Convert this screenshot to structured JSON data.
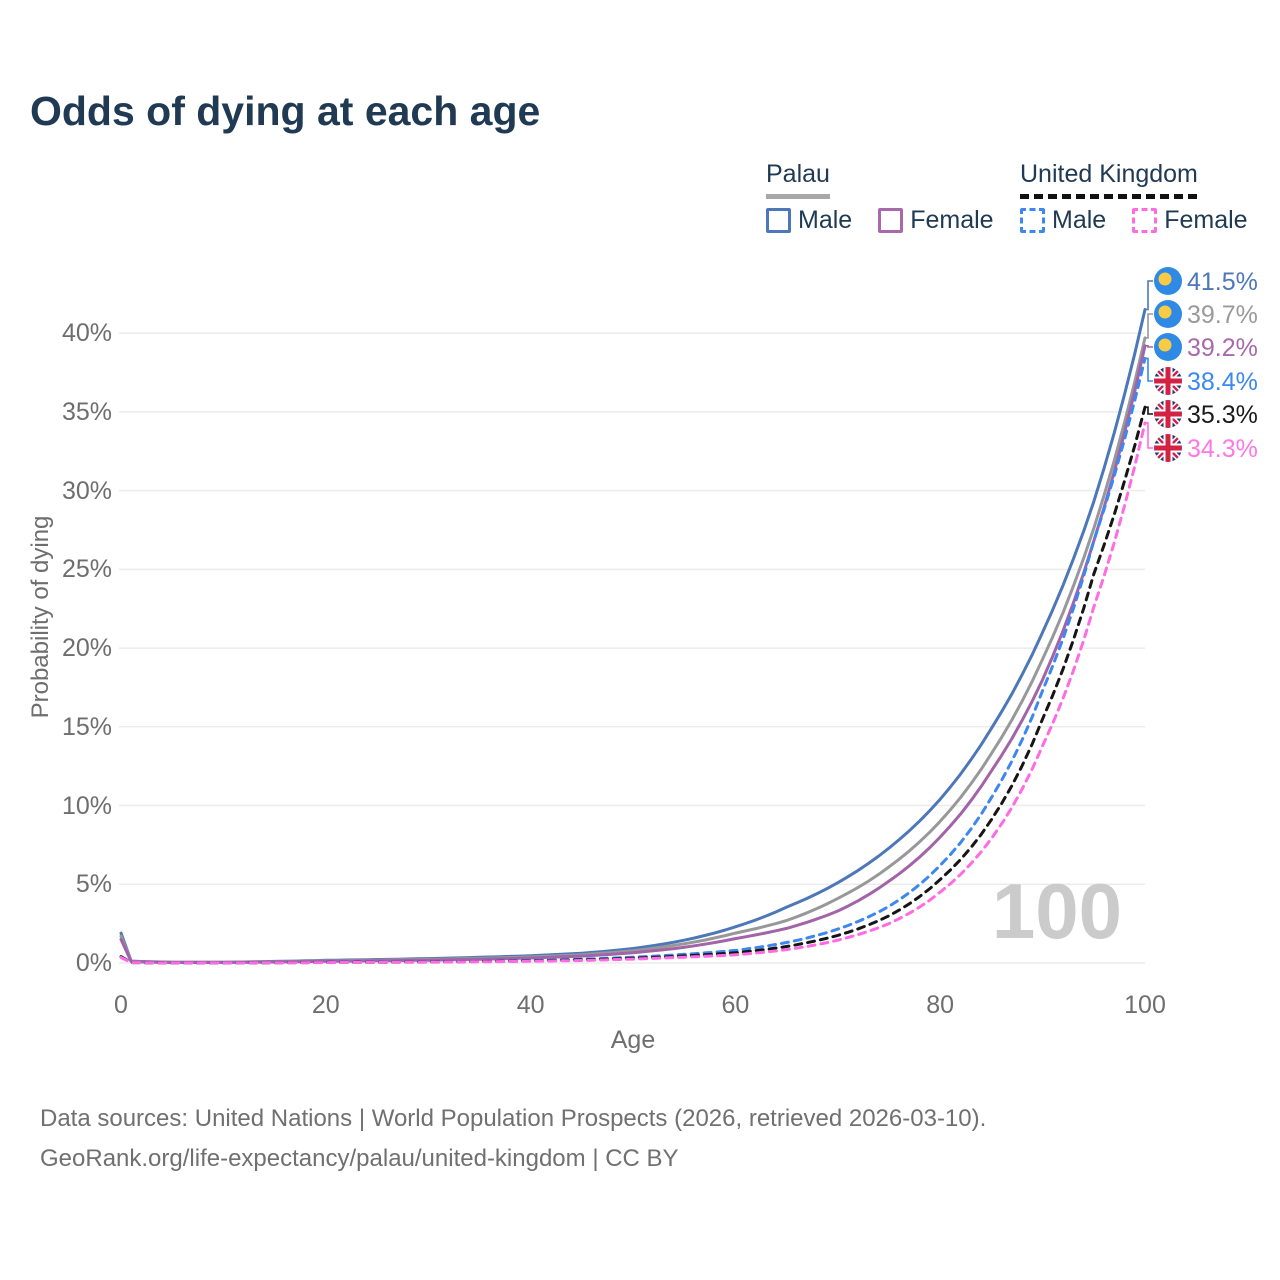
{
  "title": "Odds of dying at each age",
  "colors": {
    "title_text": "#203a54",
    "axis_text": "#6e6e6e",
    "gridline": "#ececec",
    "watermark": "#cbcbcb",
    "palau_flag_blue": "#2e8ae4",
    "palau_flag_yellow": "#f8ca45",
    "uk_flag_navy": "#20377d",
    "uk_flag_red": "#d32345"
  },
  "legend": {
    "groups": [
      {
        "name": "Palau",
        "underline_style": "solid",
        "underline_color": "#a8a8a8",
        "items": [
          {
            "label": "Male",
            "color": "#4c77b8",
            "dashed": false
          },
          {
            "label": "Female",
            "color": "#a869ab",
            "dashed": false
          }
        ]
      },
      {
        "name": "United Kingdom",
        "underline_style": "dashed",
        "underline_color": "#111111",
        "items": [
          {
            "label": "Male",
            "color": "#3c87f0",
            "dashed": true
          },
          {
            "label": "Female",
            "color": "#ff6be3",
            "dashed": true
          }
        ]
      }
    ]
  },
  "watermark": "100",
  "chart_data": {
    "type": "line",
    "title": "Odds of dying at each age",
    "xlabel": "Age",
    "ylabel": "Probability of dying",
    "xlim": [
      0,
      100
    ],
    "ylim": [
      0,
      44
    ],
    "grid": "horizontal",
    "x_ticks": [
      {
        "label": "0",
        "value": 0
      },
      {
        "label": "20",
        "value": 20
      },
      {
        "label": "40",
        "value": 40
      },
      {
        "label": "60",
        "value": 60
      },
      {
        "label": "80",
        "value": 80
      },
      {
        "label": "100",
        "value": 100
      }
    ],
    "y_ticks": [
      {
        "label": "0%",
        "value": 0
      },
      {
        "label": "5%",
        "value": 5
      },
      {
        "label": "10%",
        "value": 10
      },
      {
        "label": "15%",
        "value": 15
      },
      {
        "label": "20%",
        "value": 20
      },
      {
        "label": "25%",
        "value": 25
      },
      {
        "label": "30%",
        "value": 30
      },
      {
        "label": "35%",
        "value": 35
      },
      {
        "label": "40%",
        "value": 40
      }
    ],
    "ages": [
      0,
      1,
      5,
      10,
      15,
      20,
      25,
      30,
      35,
      40,
      45,
      50,
      55,
      60,
      65,
      70,
      75,
      80,
      85,
      90,
      95,
      100
    ],
    "unit": "percent probability of dying at each age",
    "series": [
      {
        "name": "Palau Male",
        "country": "Palau",
        "sex": "Male",
        "color": "#4c77b8",
        "dashed": false,
        "flag": "palau",
        "end_label": "41.5%",
        "end_label_color": "#4c77b8",
        "values": [
          1.9,
          0.12,
          0.05,
          0.05,
          0.1,
          0.17,
          0.22,
          0.28,
          0.36,
          0.46,
          0.62,
          0.92,
          1.45,
          2.3,
          3.55,
          5.1,
          7.3,
          10.4,
          14.9,
          21.0,
          29.3,
          41.5
        ]
      },
      {
        "name": "Palau Both Sexes",
        "country": "Palau",
        "sex": "Both sexes",
        "color": "#98989b",
        "dashed": false,
        "flag": "palau",
        "end_label": "39.7%",
        "end_label_color": "#9a9a9a",
        "values": [
          1.7,
          0.1,
          0.04,
          0.04,
          0.08,
          0.14,
          0.18,
          0.23,
          0.3,
          0.39,
          0.53,
          0.78,
          1.22,
          1.9,
          2.7,
          4.1,
          6.1,
          9.0,
          13.3,
          19.3,
          27.6,
          39.7
        ]
      },
      {
        "name": "Palau Female",
        "country": "Palau",
        "sex": "Female",
        "color": "#a263a8",
        "dashed": false,
        "flag": "palau",
        "end_label": "39.2%",
        "end_label_color": "#a869ab",
        "values": [
          1.5,
          0.09,
          0.035,
          0.035,
          0.065,
          0.11,
          0.14,
          0.18,
          0.24,
          0.32,
          0.44,
          0.65,
          1.0,
          1.55,
          2.2,
          3.3,
          5.2,
          8.0,
          12.2,
          18.0,
          26.8,
          39.2
        ]
      },
      {
        "name": "United Kingdom Male",
        "country": "United Kingdom",
        "sex": "Male",
        "color": "#3c87f0",
        "dashed": true,
        "flag": "uk",
        "end_label": "38.4%",
        "end_label_color": "#3c87f0",
        "values": [
          0.42,
          0.03,
          0.008,
          0.008,
          0.025,
          0.045,
          0.06,
          0.08,
          0.11,
          0.16,
          0.24,
          0.37,
          0.55,
          0.8,
          1.3,
          2.15,
          3.6,
          6.2,
          10.5,
          17.3,
          26.8,
          38.4
        ]
      },
      {
        "name": "United Kingdom Both Sexes",
        "country": "United Kingdom",
        "sex": "Both sexes",
        "color": "#151515",
        "dashed": true,
        "flag": "uk",
        "end_label": "35.3%",
        "end_label_color": "#1a1a1a",
        "values": [
          0.38,
          0.026,
          0.007,
          0.007,
          0.02,
          0.035,
          0.05,
          0.07,
          0.095,
          0.135,
          0.2,
          0.3,
          0.45,
          0.65,
          1.05,
          1.75,
          3.0,
          5.3,
          9.1,
          15.5,
          24.7,
          35.3
        ]
      },
      {
        "name": "United Kingdom Female",
        "country": "United Kingdom",
        "sex": "Female",
        "color": "#ff6be3",
        "dashed": true,
        "flag": "uk",
        "end_label": "34.3%",
        "end_label_color": "#ff77e6",
        "values": [
          0.35,
          0.023,
          0.006,
          0.006,
          0.016,
          0.027,
          0.04,
          0.055,
          0.08,
          0.11,
          0.16,
          0.25,
          0.37,
          0.52,
          0.85,
          1.45,
          2.5,
          4.5,
          7.9,
          13.8,
          22.6,
          34.3
        ]
      }
    ],
    "legend_position": "top-right"
  },
  "footer": {
    "line1": "Data sources: United Nations | World Population Prospects (2026, retrieved 2026-03-10).",
    "line2": "GeoRank.org/life-expectancy/palau/united-kingdom | CC BY"
  }
}
